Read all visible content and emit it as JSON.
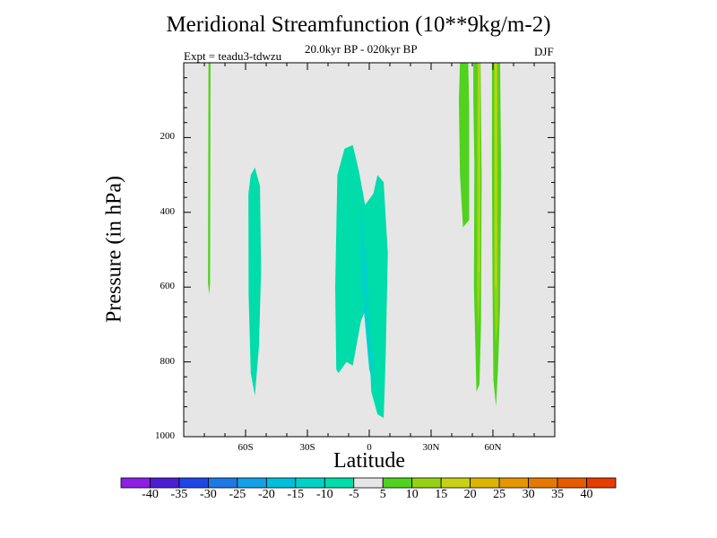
{
  "title": "Meridional Streamfunction (10**9kg/m-2)",
  "subtitle": "20.0kyr BP - 020kyr BP",
  "experiment": "Expt = teadu3-tdwzu",
  "season": "DJF",
  "colors": {
    "background": "#e6e6e6",
    "levels": [
      "#8c1ee6",
      "#4b1ed2",
      "#1e46e6",
      "#1e78e6",
      "#14a0e6",
      "#00bedc",
      "#00d2c8",
      "#00dcaa",
      "#e6e6e6",
      "#50d21e",
      "#96d214",
      "#c8d214",
      "#dcb400",
      "#e69600",
      "#e67800",
      "#e65a00",
      "#e63c00"
    ],
    "cyan_level": "#00dcaa",
    "cyan_deep": "#00d2c8",
    "green_level": "#50d21e",
    "lightgreen_level": "#96d214",
    "yellow_level": "#c8d214"
  },
  "chart_data": {
    "type": "heatmap",
    "title": "Meridional Streamfunction (10**9kg/m-2)",
    "xlabel": "Latitude",
    "ylabel": "Pressure (in hPa)",
    "xlim": [
      -90,
      90
    ],
    "ylim": [
      1000,
      0
    ],
    "x_ticks": [
      {
        "value": -60,
        "label": "60S"
      },
      {
        "value": -30,
        "label": "30S"
      },
      {
        "value": 0,
        "label": "0"
      },
      {
        "value": 30,
        "label": "30N"
      },
      {
        "value": 60,
        "label": "60N"
      }
    ],
    "y_ticks": [
      {
        "value": 200,
        "label": "200"
      },
      {
        "value": 400,
        "label": "400"
      },
      {
        "value": 600,
        "label": "600"
      },
      {
        "value": 800,
        "label": "800"
      },
      {
        "value": 1000,
        "label": "1000"
      }
    ],
    "colorbar": {
      "labels": [
        "-40",
        "-35",
        "-30",
        "-25",
        "-20",
        "-15",
        "-10",
        "-5",
        "5",
        "10",
        "15",
        "20",
        "25",
        "30",
        "35",
        "40"
      ]
    },
    "regions": [
      {
        "name": "weak-positive-near-80S",
        "level": "green_level",
        "points": [
          [
            -78,
            0
          ],
          [
            -77,
            0
          ],
          [
            -77.2,
            590
          ],
          [
            -77.6,
            620
          ],
          [
            -78.2,
            590
          ]
        ]
      },
      {
        "name": "negative-cell-55S",
        "level": "cyan_level",
        "points": [
          [
            -55.5,
            280
          ],
          [
            -53,
            330
          ],
          [
            -52.5,
            560
          ],
          [
            -53.5,
            760
          ],
          [
            -55.5,
            890
          ],
          [
            -57.5,
            830
          ],
          [
            -58.5,
            620
          ],
          [
            -58.6,
            350
          ],
          [
            -57.5,
            300
          ]
        ]
      },
      {
        "name": "negative-cell-tropics",
        "level": "cyan_level",
        "points": [
          [
            -8,
            220
          ],
          [
            -5,
            290
          ],
          [
            -2,
            380
          ],
          [
            2,
            350
          ],
          [
            4,
            300
          ],
          [
            7,
            320
          ],
          [
            9,
            510
          ],
          [
            8,
            780
          ],
          [
            7,
            950
          ],
          [
            4,
            940
          ],
          [
            1,
            880
          ],
          [
            -1,
            650
          ],
          [
            -4,
            690
          ],
          [
            -8,
            810
          ],
          [
            -11,
            800
          ],
          [
            -15,
            830
          ],
          [
            -16,
            820
          ],
          [
            -16.5,
            600
          ],
          [
            -15.5,
            300
          ],
          [
            -12,
            230
          ]
        ]
      },
      {
        "name": "negative-core-tropics",
        "level": "cyan_deep",
        "points": [
          [
            -4,
            380
          ],
          [
            -1,
            560
          ],
          [
            0,
            700
          ],
          [
            2,
            800
          ],
          [
            2,
            860
          ],
          [
            0,
            820
          ],
          [
            -2,
            700
          ],
          [
            -4,
            560
          ]
        ]
      },
      {
        "name": "positive-outer-45N",
        "level": "green_level",
        "points": [
          [
            44,
            0
          ],
          [
            48,
            0
          ],
          [
            48.5,
            120
          ],
          [
            48.5,
            420
          ],
          [
            45.5,
            440
          ],
          [
            44,
            300
          ],
          [
            43.5,
            100
          ]
        ]
      },
      {
        "name": "positive-band-55N",
        "level": "green_level",
        "points": [
          [
            50.5,
            0
          ],
          [
            54,
            0
          ],
          [
            54.5,
            300
          ],
          [
            54.2,
            700
          ],
          [
            53.5,
            860
          ],
          [
            52,
            880
          ],
          [
            51.5,
            770
          ],
          [
            50.8,
            600
          ],
          [
            51,
            270
          ],
          [
            50.5,
            100
          ]
        ]
      },
      {
        "name": "positive-band-65N",
        "level": "green_level",
        "points": [
          [
            59.5,
            0
          ],
          [
            63.5,
            0
          ],
          [
            64,
            300
          ],
          [
            63.5,
            650
          ],
          [
            62.5,
            810
          ],
          [
            61.5,
            920
          ],
          [
            60.2,
            850
          ],
          [
            59.8,
            600
          ],
          [
            59.5,
            250
          ]
        ]
      },
      {
        "name": "positive-inner-55N",
        "level": "lightgreen_level",
        "points": [
          [
            52.5,
            0
          ],
          [
            53.8,
            0
          ],
          [
            53.8,
            600
          ],
          [
            52.8,
            720
          ],
          [
            52.2,
            600
          ],
          [
            52.3,
            200
          ]
        ]
      },
      {
        "name": "positive-inner-65N",
        "level": "lightgreen_level",
        "points": [
          [
            60.5,
            0
          ],
          [
            62.3,
            0
          ],
          [
            62.4,
            700
          ],
          [
            61.3,
            760
          ],
          [
            60.6,
            600
          ]
        ]
      },
      {
        "name": "positive-core-55N",
        "level": "yellow_level",
        "points": [
          [
            53,
            0
          ],
          [
            53.6,
            0
          ],
          [
            53.6,
            560
          ],
          [
            53.1,
            560
          ]
        ]
      },
      {
        "name": "positive-core-65N",
        "level": "yellow_level",
        "points": [
          [
            61,
            0
          ],
          [
            61.8,
            0
          ],
          [
            61.8,
            600
          ],
          [
            61.1,
            600
          ]
        ]
      }
    ]
  }
}
